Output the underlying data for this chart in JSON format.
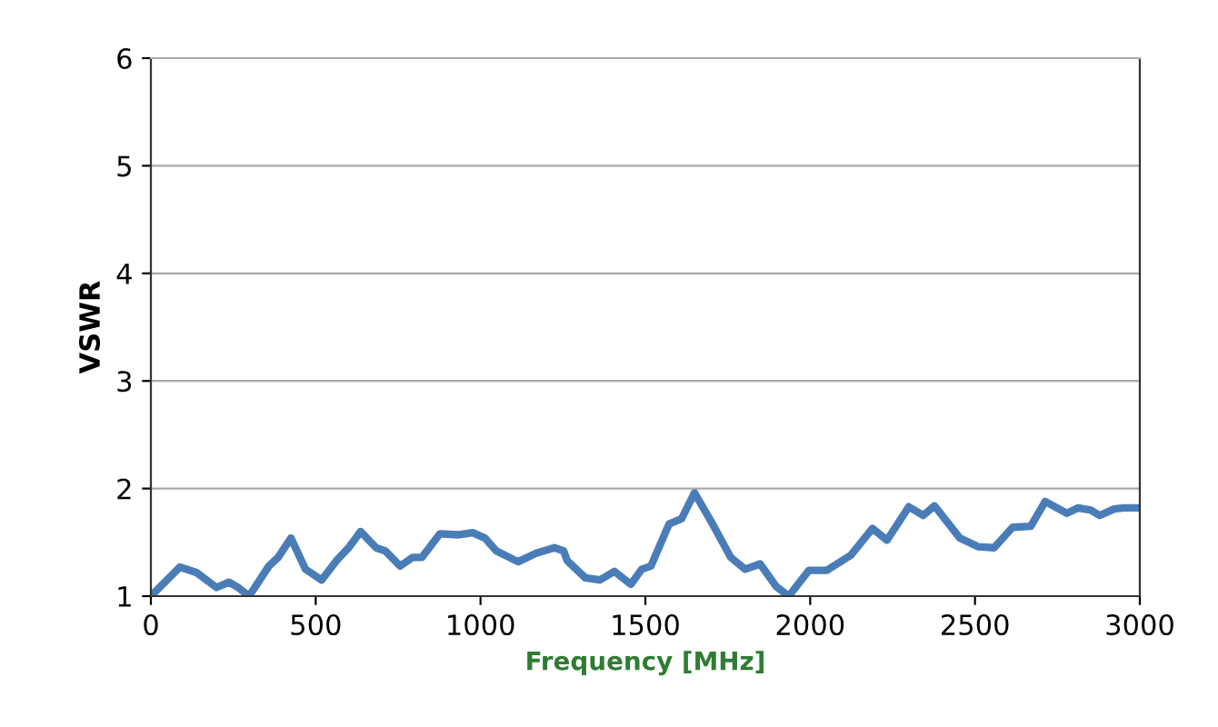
{
  "chart_data": {
    "type": "line",
    "xlabel": "Frequency [MHz]",
    "ylabel": "VSWR",
    "xlim": [
      0,
      3000
    ],
    "ylim": [
      1,
      6
    ],
    "xticks": [
      0,
      500,
      1000,
      1500,
      2000,
      2500,
      3000
    ],
    "yticks": [
      1,
      2,
      3,
      4,
      5,
      6
    ],
    "grid": "y",
    "marker": "none",
    "line_style": "solid",
    "series": [
      {
        "color": "#4a7db8",
        "x": [
          0,
          88,
          138,
          199,
          237,
          265,
          298,
          358,
          386,
          425,
          469,
          518,
          563,
          600,
          636,
          683,
          711,
          756,
          794,
          822,
          877,
          932,
          976,
          1013,
          1048,
          1114,
          1169,
          1224,
          1252,
          1263,
          1318,
          1362,
          1406,
          1456,
          1489,
          1517,
          1572,
          1610,
          1649,
          1704,
          1759,
          1803,
          1848,
          1897,
          1935,
          1996,
          2051,
          2123,
          2189,
          2233,
          2299,
          2343,
          2377,
          2454,
          2509,
          2558,
          2614,
          2669,
          2713,
          2779,
          2812,
          2851,
          2878,
          2922,
          2950,
          3000
        ],
        "values": [
          1.0,
          1.27,
          1.22,
          1.08,
          1.13,
          1.08,
          1.0,
          1.28,
          1.36,
          1.54,
          1.25,
          1.15,
          1.33,
          1.45,
          1.6,
          1.45,
          1.42,
          1.28,
          1.36,
          1.36,
          1.58,
          1.57,
          1.59,
          1.54,
          1.42,
          1.32,
          1.4,
          1.45,
          1.42,
          1.33,
          1.17,
          1.15,
          1.23,
          1.11,
          1.25,
          1.28,
          1.67,
          1.72,
          1.96,
          1.67,
          1.36,
          1.25,
          1.3,
          1.09,
          1.0,
          1.24,
          1.24,
          1.38,
          1.63,
          1.52,
          1.83,
          1.75,
          1.84,
          1.54,
          1.46,
          1.45,
          1.64,
          1.65,
          1.88,
          1.77,
          1.82,
          1.8,
          1.75,
          1.81,
          1.82,
          1.82
        ]
      }
    ]
  }
}
